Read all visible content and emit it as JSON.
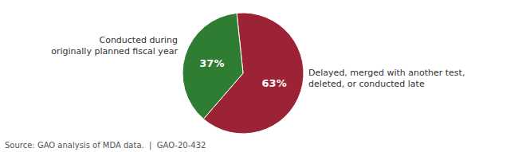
{
  "chart_data": {
    "type": "pie",
    "categories": [
      "Delayed, merged with another test,\ndeleted, or conducted late",
      "Conducted during\noriginally planned fiscal year"
    ],
    "values": [
      63,
      37
    ],
    "value_labels": [
      "63%",
      "37%"
    ],
    "colors": [
      "#9B2335",
      "#2E7D32"
    ],
    "data_labels": true,
    "annotations": [
      "Source: GAO analysis of MDA data.  |  GAO-20-432"
    ]
  }
}
